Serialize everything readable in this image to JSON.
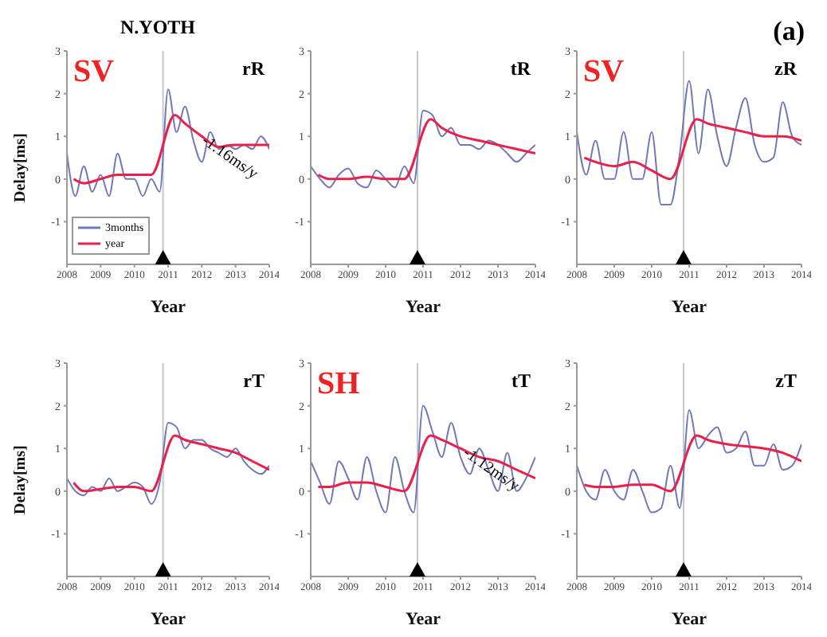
{
  "chart_data": [
    {
      "type": "line",
      "title": "N.YOTH",
      "xlabel": "Year",
      "ylabel": "Delay[ms]",
      "annotations": [
        "rR",
        "SV",
        "-1.16ms/y"
      ],
      "x": [
        2008,
        2008.25,
        2008.5,
        2008.75,
        2009,
        2009.25,
        2009.5,
        2009.75,
        2010,
        2010.25,
        2010.5,
        2010.75,
        2011,
        2011.25,
        2011.5,
        2011.75,
        2012,
        2012.25,
        2012.5,
        2012.75,
        2013,
        2013.25,
        2013.5,
        2013.75,
        2014
      ],
      "xlim": [
        2008,
        2014
      ],
      "xticks": [
        2008,
        2009,
        2010,
        2011,
        2012,
        2013,
        2014
      ],
      "ylim": [
        -2,
        3
      ],
      "yticks": [
        -1,
        0,
        1,
        2,
        3
      ],
      "legend": "bottom left",
      "ref_lines": [
        {
          "axis": "x",
          "value": 2010.85,
          "color": "#c8c8c8"
        }
      ],
      "series": [
        {
          "name": "3months",
          "color": "#7078b8",
          "values": [
            0.6,
            -0.4,
            0.3,
            -0.3,
            0.1,
            -0.4,
            0.6,
            0.0,
            0.0,
            -0.4,
            0.0,
            -0.3,
            2.1,
            1.1,
            1.7,
            0.9,
            0.4,
            1.1,
            0.7,
            0.8,
            0.7,
            0.8,
            0.7,
            1.0,
            0.7
          ]
        },
        {
          "name": "year",
          "color": "#e8204a",
          "x": [
            2008.2,
            2008.5,
            2009,
            2009.5,
            2010,
            2010.5,
            2011.2,
            2011.5,
            2012,
            2012.5,
            2013,
            2013.5,
            2014
          ],
          "values": [
            0.0,
            -0.1,
            0.0,
            0.1,
            0.1,
            0.1,
            1.5,
            1.3,
            1.0,
            0.75,
            0.8,
            0.8,
            0.8
          ]
        }
      ]
    },
    {
      "type": "line",
      "xlabel": "Year",
      "annotations": [
        "tR"
      ],
      "x": [
        2008,
        2008.25,
        2008.5,
        2008.75,
        2009,
        2009.25,
        2009.5,
        2009.75,
        2010,
        2010.25,
        2010.5,
        2010.75,
        2011,
        2011.25,
        2011.5,
        2011.75,
        2012,
        2012.25,
        2012.5,
        2012.75,
        2013,
        2013.25,
        2013.5,
        2013.75,
        2014
      ],
      "xlim": [
        2008,
        2014
      ],
      "xticks": [
        2008,
        2009,
        2010,
        2011,
        2012,
        2013,
        2014
      ],
      "ylim": [
        -2,
        3
      ],
      "yticks": [
        -1,
        0,
        1,
        2,
        3
      ],
      "ref_lines": [
        {
          "axis": "x",
          "value": 2010.85,
          "color": "#c8c8c8"
        }
      ],
      "series": [
        {
          "color": "#7078b8",
          "values": [
            0.3,
            0.0,
            -0.2,
            0.1,
            0.25,
            -0.1,
            -0.2,
            0.2,
            0.0,
            -0.2,
            0.3,
            -0.1,
            1.6,
            1.5,
            1.0,
            1.2,
            0.8,
            0.8,
            0.7,
            0.9,
            0.8,
            0.6,
            0.4,
            0.6,
            0.8
          ]
        },
        {
          "color": "#e8204a",
          "x": [
            2008.2,
            2008.5,
            2009,
            2009.5,
            2010,
            2010.5,
            2011.2,
            2011.5,
            2012,
            2012.5,
            2013,
            2013.5,
            2014
          ],
          "values": [
            0.1,
            0.0,
            0.0,
            0.05,
            0.0,
            0.0,
            1.4,
            1.2,
            1.0,
            0.9,
            0.8,
            0.7,
            0.6
          ]
        }
      ]
    },
    {
      "type": "line",
      "title": "(a)",
      "xlabel": "Year",
      "annotations": [
        "zR",
        "SV"
      ],
      "x": [
        2008,
        2008.25,
        2008.5,
        2008.75,
        2009,
        2009.25,
        2009.5,
        2009.75,
        2010,
        2010.25,
        2010.5,
        2010.75,
        2011,
        2011.25,
        2011.5,
        2011.75,
        2012,
        2012.25,
        2012.5,
        2012.75,
        2013,
        2013.25,
        2013.5,
        2013.75,
        2014
      ],
      "xlim": [
        2008,
        2014
      ],
      "xticks": [
        2008,
        2009,
        2010,
        2011,
        2012,
        2013,
        2014
      ],
      "ylim": [
        -2,
        3
      ],
      "yticks": [
        -1,
        0,
        1,
        2,
        3
      ],
      "ref_lines": [
        {
          "axis": "x",
          "value": 2010.85,
          "color": "#c8c8c8"
        }
      ],
      "series": [
        {
          "color": "#7078b8",
          "values": [
            1.1,
            0.1,
            0.9,
            0.0,
            0.0,
            1.1,
            0.0,
            0.0,
            1.1,
            -0.6,
            -0.6,
            0.6,
            2.3,
            0.6,
            2.1,
            1.0,
            0.3,
            1.2,
            1.9,
            0.8,
            0.4,
            0.5,
            1.8,
            1.0,
            0.8
          ]
        },
        {
          "color": "#e8204a",
          "x": [
            2008.2,
            2008.5,
            2009,
            2009.5,
            2010,
            2010.5,
            2011.2,
            2011.5,
            2012,
            2012.5,
            2013,
            2013.5,
            2014
          ],
          "values": [
            0.5,
            0.4,
            0.3,
            0.4,
            0.2,
            0.0,
            1.4,
            1.3,
            1.2,
            1.1,
            1.0,
            1.0,
            0.9
          ]
        }
      ]
    },
    {
      "type": "line",
      "xlabel": "Year",
      "ylabel": "Delay[ms]",
      "annotations": [
        "rT"
      ],
      "x": [
        2008,
        2008.25,
        2008.5,
        2008.75,
        2009,
        2009.25,
        2009.5,
        2009.75,
        2010,
        2010.25,
        2010.5,
        2010.75,
        2011,
        2011.25,
        2011.5,
        2011.75,
        2012,
        2012.25,
        2012.5,
        2012.75,
        2013,
        2013.25,
        2013.5,
        2013.75,
        2014
      ],
      "xlim": [
        2008,
        2014
      ],
      "xticks": [
        2008,
        2009,
        2010,
        2011,
        2012,
        2013,
        2014
      ],
      "ylim": [
        -2,
        3
      ],
      "yticks": [
        -1,
        0,
        1,
        2,
        3
      ],
      "ref_lines": [
        {
          "axis": "x",
          "value": 2010.85,
          "color": "#c8c8c8"
        }
      ],
      "series": [
        {
          "color": "#7078b8",
          "values": [
            0.3,
            0.0,
            -0.1,
            0.1,
            0.0,
            0.3,
            0.0,
            0.1,
            0.2,
            0.1,
            -0.3,
            0.2,
            1.6,
            1.5,
            1.0,
            1.2,
            1.2,
            1.0,
            0.9,
            0.8,
            1.0,
            0.7,
            0.5,
            0.4,
            0.6
          ]
        },
        {
          "color": "#e8204a",
          "x": [
            2008.2,
            2008.5,
            2009,
            2009.5,
            2010,
            2010.5,
            2011.2,
            2011.5,
            2012,
            2012.5,
            2013,
            2013.5,
            2014
          ],
          "values": [
            0.2,
            0.0,
            0.05,
            0.1,
            0.1,
            0.0,
            1.3,
            1.2,
            1.1,
            1.0,
            0.9,
            0.7,
            0.5
          ]
        }
      ]
    },
    {
      "type": "line",
      "xlabel": "Year",
      "annotations": [
        "tT",
        "SH",
        "-1.12ms/y"
      ],
      "x": [
        2008,
        2008.25,
        2008.5,
        2008.75,
        2009,
        2009.25,
        2009.5,
        2009.75,
        2010,
        2010.25,
        2010.5,
        2010.75,
        2011,
        2011.25,
        2011.5,
        2011.75,
        2012,
        2012.25,
        2012.5,
        2012.75,
        2013,
        2013.25,
        2013.5,
        2013.75,
        2014
      ],
      "xlim": [
        2008,
        2014
      ],
      "xticks": [
        2008,
        2009,
        2010,
        2011,
        2012,
        2013,
        2014
      ],
      "ylim": [
        -2,
        3
      ],
      "yticks": [
        -1,
        0,
        1,
        2,
        3
      ],
      "ref_lines": [
        {
          "axis": "x",
          "value": 2010.85,
          "color": "#c8c8c8"
        }
      ],
      "series": [
        {
          "color": "#7078b8",
          "values": [
            0.7,
            0.2,
            -0.3,
            0.7,
            0.3,
            -0.2,
            0.8,
            0.0,
            -0.5,
            0.8,
            0.0,
            -0.5,
            2.0,
            1.4,
            0.8,
            1.6,
            0.8,
            0.4,
            1.0,
            0.5,
            0.0,
            0.9,
            0.0,
            0.3,
            0.8
          ]
        },
        {
          "color": "#e8204a",
          "x": [
            2008.2,
            2008.5,
            2009,
            2009.5,
            2010,
            2010.5,
            2011.2,
            2011.5,
            2012,
            2012.5,
            2013,
            2013.5,
            2014
          ],
          "values": [
            0.1,
            0.1,
            0.2,
            0.2,
            0.1,
            0.0,
            1.3,
            1.2,
            1.0,
            0.8,
            0.7,
            0.5,
            0.3
          ]
        }
      ]
    },
    {
      "type": "line",
      "xlabel": "Year",
      "annotations": [
        "zT"
      ],
      "x": [
        2008,
        2008.25,
        2008.5,
        2008.75,
        2009,
        2009.25,
        2009.5,
        2009.75,
        2010,
        2010.25,
        2010.5,
        2010.75,
        2011,
        2011.25,
        2011.5,
        2011.75,
        2012,
        2012.25,
        2012.5,
        2012.75,
        2013,
        2013.25,
        2013.5,
        2013.75,
        2014
      ],
      "xlim": [
        2008,
        2014
      ],
      "xticks": [
        2008,
        2009,
        2010,
        2011,
        2012,
        2013,
        2014
      ],
      "ylim": [
        -2,
        3
      ],
      "yticks": [
        -1,
        0,
        1,
        2,
        3
      ],
      "ref_lines": [
        {
          "axis": "x",
          "value": 2010.85,
          "color": "#c8c8c8"
        }
      ],
      "series": [
        {
          "color": "#7078b8",
          "values": [
            0.6,
            0.0,
            -0.2,
            0.5,
            0.0,
            -0.2,
            0.5,
            0.0,
            -0.5,
            -0.4,
            0.6,
            -0.4,
            1.9,
            1.0,
            1.3,
            1.5,
            0.9,
            1.0,
            1.4,
            0.6,
            0.6,
            1.1,
            0.5,
            0.6,
            1.1
          ]
        },
        {
          "color": "#e8204a",
          "x": [
            2008.2,
            2008.5,
            2009,
            2009.5,
            2010,
            2010.5,
            2011.2,
            2011.5,
            2012,
            2012.5,
            2013,
            2013.5,
            2014
          ],
          "values": [
            0.15,
            0.1,
            0.1,
            0.15,
            0.15,
            0.0,
            1.3,
            1.2,
            1.1,
            1.05,
            1.0,
            0.9,
            0.7
          ]
        }
      ]
    }
  ]
}
